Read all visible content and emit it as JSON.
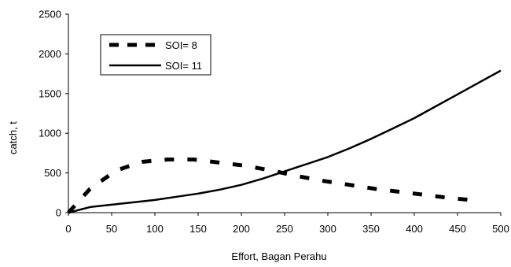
{
  "chart_data": {
    "type": "line",
    "title": "",
    "xlabel": "Effort, Bagan Perahu",
    "ylabel": "catch, t",
    "xlim": [
      0,
      500
    ],
    "ylim": [
      0,
      2500
    ],
    "x_ticks": [
      "0",
      "50",
      "100",
      "150",
      "200",
      "250",
      "300",
      "350",
      "400",
      "450",
      "500"
    ],
    "y_ticks": [
      "0",
      "500",
      "1000",
      "1500",
      "2000",
      "2500"
    ],
    "grid": false,
    "legend_position": "top-left",
    "series": [
      {
        "name": "SOI= 8",
        "style": "dashed",
        "color": "#000000",
        "x": [
          0,
          25,
          55,
          85,
          115,
          145,
          175,
          205,
          235,
          265,
          295,
          325,
          355,
          385,
          415,
          445,
          475
        ],
        "y": [
          0,
          300,
          530,
          640,
          670,
          670,
          630,
          590,
          530,
          460,
          400,
          350,
          300,
          260,
          220,
          180,
          150
        ]
      },
      {
        "name": "SOI= 11",
        "style": "solid",
        "color": "#000000",
        "x": [
          0,
          25,
          50,
          75,
          100,
          125,
          150,
          175,
          200,
          225,
          250,
          275,
          300,
          325,
          350,
          375,
          400,
          425,
          450,
          475,
          500
        ],
        "y": [
          0,
          70,
          100,
          130,
          160,
          200,
          240,
          290,
          350,
          430,
          520,
          610,
          700,
          810,
          930,
          1060,
          1190,
          1340,
          1490,
          1640,
          1790
        ]
      }
    ]
  }
}
